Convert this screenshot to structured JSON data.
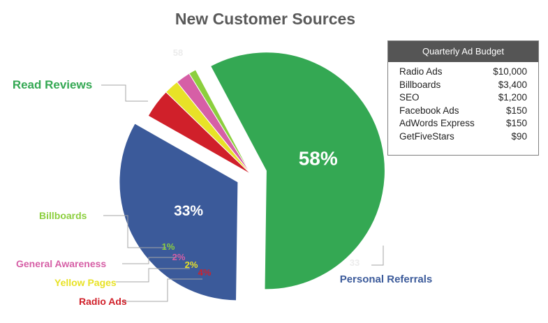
{
  "chart_data": {
    "type": "pie",
    "title": "New Customer Sources",
    "slices": [
      {
        "label": "Read Reviews",
        "value": 58,
        "display": "58%",
        "color": "#34a853"
      },
      {
        "label": "Personal Referrals",
        "value": 33,
        "display": "33%",
        "color": "#3b5a9a"
      },
      {
        "label": "Radio Ads",
        "value": 4,
        "display": "4%",
        "color": "#d0202a"
      },
      {
        "label": "Yellow Pages",
        "value": 2,
        "display": "2%",
        "color": "#e8e227"
      },
      {
        "label": "General Awareness",
        "value": 2,
        "display": "2%",
        "color": "#d65fa6"
      },
      {
        "label": "Billboards",
        "value": 1,
        "display": "1%",
        "color": "#8ccf3e"
      }
    ],
    "faint_labels": [
      "58",
      "33"
    ]
  },
  "budget": {
    "title": "Quarterly Ad Budget",
    "rows": [
      {
        "item": "Radio Ads",
        "amount": "$10,000"
      },
      {
        "item": "Billboards",
        "amount": "$3,400"
      },
      {
        "item": "SEO",
        "amount": "$1,200"
      },
      {
        "item": "Facebook Ads",
        "amount": "$150"
      },
      {
        "item": "AdWords Express",
        "amount": "$150"
      },
      {
        "item": "GetFiveStars",
        "amount": "$90"
      }
    ]
  }
}
